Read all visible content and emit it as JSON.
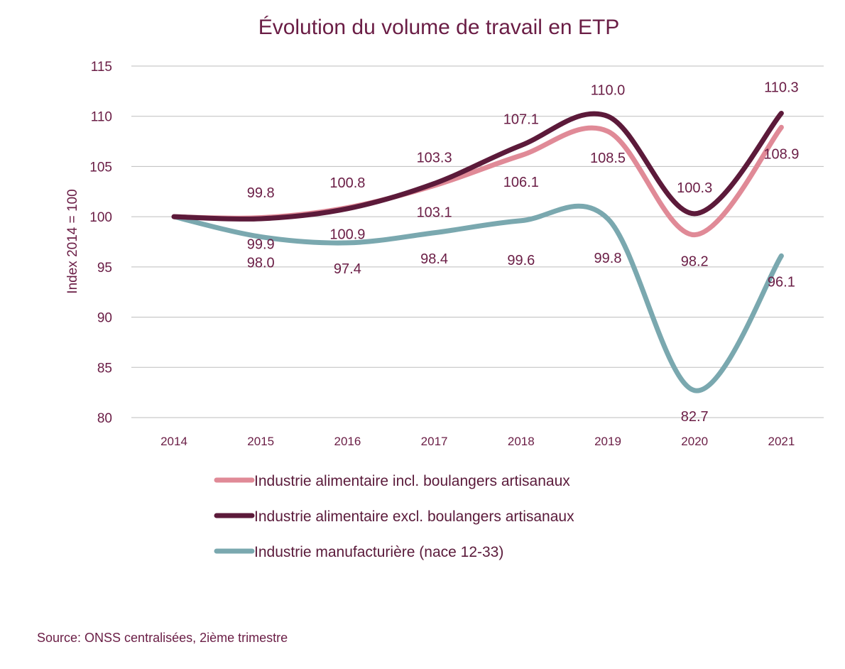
{
  "chart_data": {
    "type": "line",
    "title": "Évolution du volume de travail en ETP",
    "xlabel": "",
    "ylabel": "Index 2014 = 100",
    "ylim": [
      80,
      115
    ],
    "yticks": [
      "80",
      "85",
      "90",
      "95",
      "100",
      "105",
      "110",
      "115"
    ],
    "categories": [
      "2014",
      "2015",
      "2016",
      "2017",
      "2018",
      "2019",
      "2020",
      "2021"
    ],
    "grid": true,
    "legend_position": "bottom",
    "series": [
      {
        "name": "Industrie alimentaire incl. boulangers artisanaux",
        "color": "#e08a97",
        "values": [
          100,
          99.9,
          100.9,
          103.1,
          106.1,
          108.5,
          98.2,
          108.9
        ],
        "labels": [
          "",
          "99.9",
          "100.9",
          "103.1",
          "106.1",
          "108.5",
          "98.2",
          "108.9"
        ]
      },
      {
        "name": "Industrie alimentaire excl. boulangers artisanaux",
        "color": "#5c1a3a",
        "values": [
          100,
          99.8,
          100.8,
          103.3,
          107.1,
          110.0,
          100.3,
          110.3
        ],
        "labels": [
          "",
          "99.8",
          "100.8",
          "103.3",
          "107.1",
          "110.0",
          "100.3",
          "110.3"
        ]
      },
      {
        "name": "Industrie manufacturière (nace 12-33)",
        "color": "#7aa8af",
        "values": [
          100,
          98.0,
          97.4,
          98.4,
          99.6,
          99.8,
          82.7,
          96.1
        ],
        "labels": [
          "",
          "98.0",
          "97.4",
          "98.4",
          "99.6",
          "99.8",
          "82.7",
          "96.1"
        ]
      }
    ],
    "source": "Source: ONSS centralisées, 2ième trimestre"
  }
}
